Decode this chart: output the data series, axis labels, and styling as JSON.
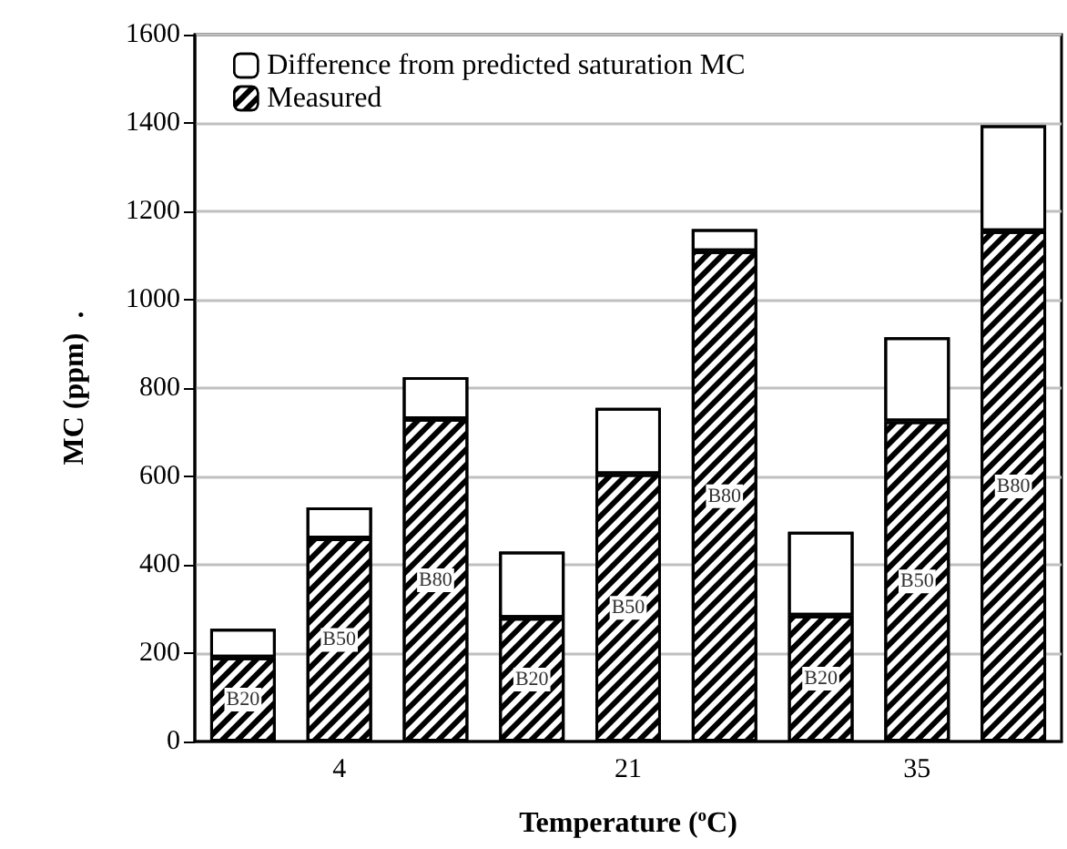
{
  "chart_data": {
    "type": "bar",
    "stacked": true,
    "xlabel": "Temperature ($^{o}$C)",
    "ylabel": "MC (ppm)  .",
    "categories": [
      null,
      "4",
      null,
      null,
      "21",
      null,
      null,
      "35",
      null
    ],
    "series": [
      {
        "name": "Measured",
        "color": "#000000",
        "values": [
          190,
          460,
          730,
          280,
          605,
          1110,
          285,
          725,
          1155
        ],
        "value_labels": [
          "B20",
          "B50",
          "B80",
          "B20",
          "B50",
          "B80",
          "B20",
          "B50",
          "B80"
        ]
      },
      {
        "name": "Difference from predicted saturation MC",
        "color": "#ffffff",
        "values": [
          65,
          70,
          95,
          150,
          150,
          50,
          190,
          190,
          240
        ]
      }
    ],
    "ylim": [
      0,
      1600
    ],
    "yticks": [
      0,
      200,
      400,
      600,
      800,
      1000,
      1200,
      1400,
      1600
    ],
    "grid": "y",
    "legend": "top left"
  }
}
